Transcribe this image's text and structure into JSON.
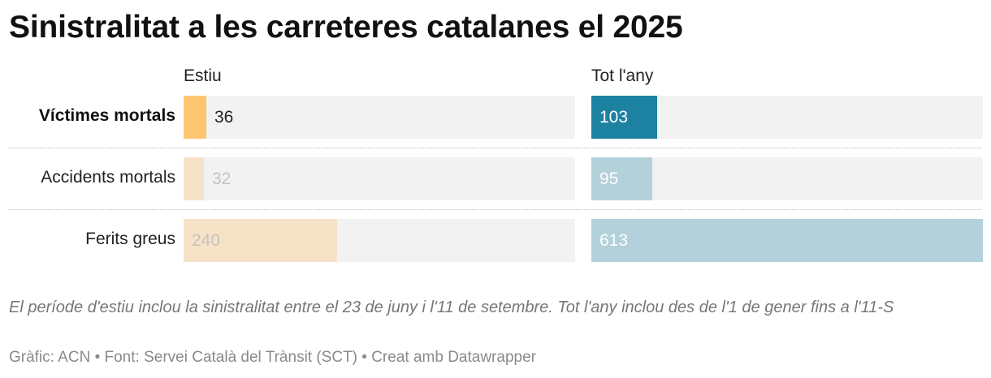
{
  "title": "Sinistralitat a les carreteres catalanes el 2025",
  "note": "El període d'estiu inclou la sinistralitat entre el 23 de juny i l'11 de setembre. Tot l'any inclou des de l'1 de gener fins a l'11-S",
  "credit": "Gràfic: ACN • Font: Servei Català del Trànsit (SCT) • Creat amb Datawrapper",
  "chart_data": {
    "type": "bar",
    "title": "Sinistralitat a les carreteres catalanes el 2025",
    "categories": [
      "Víctimes mortals",
      "Accidents mortals",
      "Ferits greus"
    ],
    "series": [
      {
        "name": "Estiu",
        "values": [
          36,
          32,
          240
        ],
        "colors": [
          "#fdc66f",
          "#f6e3c7",
          "#f6e3c7"
        ]
      },
      {
        "name": "Tot l'any",
        "values": [
          103,
          95,
          613
        ],
        "colors": [
          "#1d81a2",
          "#b2d1da",
          "#b2d1da"
        ]
      }
    ],
    "xlim": [
      0,
      613
    ],
    "highlighted_category": "Víctimes mortals",
    "value_label_colors": {
      "highlight_outside": "#222222",
      "highlight_inside": "#ffffff",
      "muted": "#c3c3c3",
      "muted_inside": "#ffffff"
    }
  }
}
